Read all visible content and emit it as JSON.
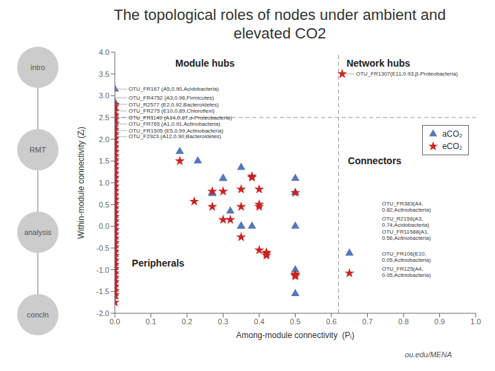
{
  "chart_data": {
    "type": "scatter",
    "title": "The topological roles of nodes under ambient and\nelevated CO2",
    "x_label": "Among-module connectivity  (Pᵢ)",
    "y_label": "Within-module connectivity (Zᵢ)",
    "xlim": [
      0.0,
      1.0
    ],
    "ylim": [
      -2.0,
      4.0
    ],
    "xticks": [
      {
        "value": 0.0,
        "label": "0.0"
      },
      0.1,
      0.2,
      0.3,
      0.4,
      0.5,
      0.6,
      0.7,
      0.8,
      0.9,
      {
        "value": 1.0,
        "label": "1.0"
      }
    ],
    "yticks": [
      {
        "value": -2.0,
        "label": "-2.0"
      },
      -1.5,
      {
        "value": -1.0,
        "label": "-1.0"
      },
      -0.5,
      {
        "value": 0.0,
        "label": "0.0"
      },
      0.5,
      {
        "value": 1.0,
        "label": "1.0"
      },
      1.5,
      {
        "value": 2.0,
        "label": "2.0"
      },
      2.5,
      {
        "value": 3.0,
        "label": "3.0"
      },
      3.5,
      {
        "value": 4.0,
        "label": "4.0"
      }
    ],
    "grid": false,
    "legend": "right",
    "x_line": 0.62,
    "y_line": 2.5,
    "series": [
      {
        "name": "aCO₂",
        "color": "#5577bb",
        "marker": "triangle",
        "x": [
          0.0,
          0.0,
          0.0,
          0.0,
          0.0,
          0.0,
          0.0,
          0.0,
          0.0,
          0.0,
          0.0,
          0.0,
          0.0,
          0.0,
          0.0,
          0.0,
          0.0,
          0.0,
          0.0,
          0.0,
          0.0,
          0.0,
          0.0,
          0.0,
          0.0,
          0.0,
          0.0,
          0.0,
          0.0,
          0.0,
          0.0,
          0.0,
          0.0,
          0.0,
          0.0,
          0.0,
          0.0,
          0.0,
          0.0,
          0.0,
          0.0,
          0.0,
          0.0,
          0.0,
          0.0,
          0.0,
          0.0,
          0.18,
          0.23,
          0.27,
          0.27,
          0.3,
          0.3,
          0.32,
          0.35,
          0.35,
          0.35,
          0.38,
          0.5,
          0.5,
          0.5,
          0.5,
          0.5,
          0.65
        ],
        "values": [
          3.15,
          2.85,
          2.7,
          2.6,
          2.55,
          2.45,
          2.35,
          2.25,
          2.15,
          2.05,
          1.95,
          1.85,
          1.75,
          1.65,
          1.55,
          1.45,
          1.35,
          1.25,
          1.15,
          1.05,
          0.95,
          0.85,
          0.75,
          0.65,
          0.55,
          0.45,
          0.35,
          0.25,
          0.15,
          0.05,
          -0.05,
          -0.15,
          -0.25,
          -0.35,
          -0.45,
          -0.55,
          -0.65,
          -0.75,
          -0.85,
          -0.95,
          -1.05,
          -1.15,
          -1.25,
          -1.35,
          -1.45,
          -1.55,
          -1.62,
          1.72,
          1.5,
          0.77,
          0.75,
          1.1,
          1.1,
          0.35,
          1.35,
          0.0,
          0.0,
          0.0,
          1.1,
          0.77,
          0.0,
          -1.0,
          -1.55,
          -0.62
        ]
      },
      {
        "name": "eCO₂",
        "color": "#cc2222",
        "marker": "star",
        "x": [
          0.0,
          0.0,
          0.0,
          0.0,
          0.0,
          0.0,
          0.0,
          0.0,
          0.0,
          0.0,
          0.0,
          0.0,
          0.0,
          0.0,
          0.0,
          0.0,
          0.0,
          0.0,
          0.0,
          0.0,
          0.0,
          0.0,
          0.0,
          0.0,
          0.0,
          0.0,
          0.0,
          0.0,
          0.0,
          0.0,
          0.0,
          0.0,
          0.0,
          0.0,
          0.0,
          0.0,
          0.0,
          0.0,
          0.0,
          0.0,
          0.0,
          0.0,
          0.0,
          0.0,
          0.0,
          0.0,
          0.18,
          0.22,
          0.27,
          0.27,
          0.3,
          0.3,
          0.32,
          0.35,
          0.35,
          0.35,
          0.38,
          0.38,
          0.4,
          0.4,
          0.4,
          0.4,
          0.42,
          0.42,
          0.42,
          0.5,
          0.5,
          0.5,
          0.5,
          0.63,
          0.65
        ],
        "values": [
          2.8,
          2.75,
          2.65,
          2.55,
          2.45,
          2.35,
          2.22,
          2.12,
          2.02,
          1.92,
          1.82,
          1.72,
          1.62,
          1.52,
          1.42,
          1.32,
          1.22,
          1.12,
          1.02,
          0.92,
          0.82,
          0.72,
          0.62,
          0.52,
          0.42,
          0.32,
          0.22,
          0.12,
          0.02,
          -0.08,
          -0.18,
          -0.28,
          -0.38,
          -0.48,
          -0.58,
          -0.68,
          -0.78,
          -0.88,
          -0.98,
          -1.08,
          -1.18,
          -1.28,
          -1.38,
          -1.48,
          -1.58,
          -1.75,
          1.5,
          0.57,
          0.8,
          0.45,
          0.8,
          0.15,
          0.15,
          0.85,
          0.45,
          -0.25,
          1.15,
          1.12,
          0.85,
          0.5,
          0.45,
          -0.55,
          -0.6,
          -0.63,
          -0.67,
          0.77,
          -1.1,
          -1.12,
          -1.15,
          3.5,
          -1.08
        ]
      }
    ],
    "region_labels": [
      {
        "text": "Module hubs",
        "x": 0.25,
        "y": 3.75
      },
      {
        "text": "Network hubs",
        "x": 0.73,
        "y": 3.75
      },
      {
        "text": "Peripherals",
        "x": 0.12,
        "y": -0.85
      },
      {
        "text": "Connectors",
        "x": 0.72,
        "y": 1.5
      }
    ],
    "annotations": [
      {
        "text": "OTU_FR167 (A5,0.90,Acidobacteria)",
        "x": 0.0,
        "y": 3.15
      },
      {
        "text": "OTU_FR4752 (A3,0.96,Firmicutes)",
        "x": 0.0,
        "y": 2.95
      },
      {
        "text": "OTU_R2577 (E2,0.92,Bacteroidetes)",
        "x": 0.0,
        "y": 2.8
      },
      {
        "text": "OTU_FR275 (E10,0.89,Chloroflexi)",
        "x": 0.0,
        "y": 2.65
      },
      {
        "text": "OTU_FR1149 (A14,0.87,α-Proteobacteria)",
        "x": 0.0,
        "y": 2.5
      },
      {
        "text": "OTU_FR765 (A1,0.91,Actinobacteria)",
        "x": 0.0,
        "y": 2.35
      },
      {
        "text": "OTU_FR1505 (E5,0.99,Actinobacteria)",
        "x": 0.0,
        "y": 2.2
      },
      {
        "text": "OTU_F2923 (A12,0.90,Bacteroidetes)",
        "x": 0.0,
        "y": 2.06
      },
      {
        "text": "OTU_FR1307(E11,0.93,β-Proteobacteria)",
        "x": 0.63,
        "y": 3.5
      }
    ],
    "text_labels": [
      {
        "text": "OTU_FR383(A4,\n0.82,Actinobacteria)",
        "x": 0.74,
        "y": 0.45
      },
      {
        "text": "OTU_R2156(A3,\n0.74,Acidobacteria)",
        "x": 0.74,
        "y": 0.1
      },
      {
        "text": "OTU_FR11588(A1,\n0.56,Actinobacteria)",
        "x": 0.74,
        "y": -0.2
      },
      {
        "text": "OTU_FR106(E10,\n0.05,Actinobacteria)",
        "x": 0.74,
        "y": -0.7
      },
      {
        "text": "OTU_FR125(A4,\n0.05,Actinobacteria)",
        "x": 0.74,
        "y": -1.05
      }
    ],
    "side_labels": [
      "intro",
      "RMT",
      "analysis",
      "concln"
    ],
    "footer": "ou.edu/MENA"
  }
}
